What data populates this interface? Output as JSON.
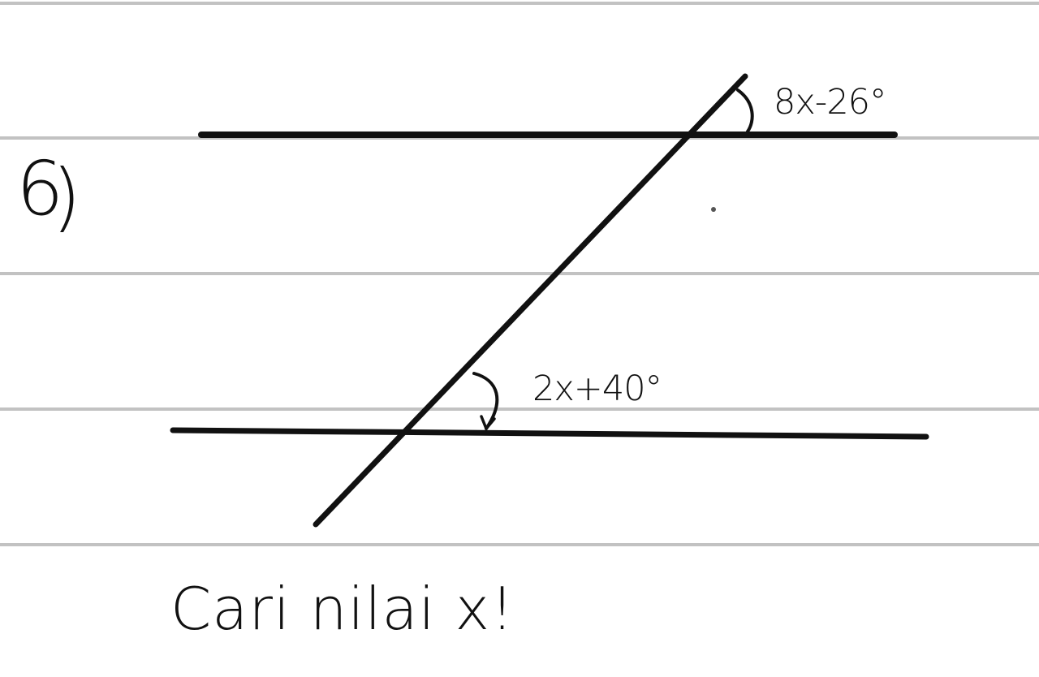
{
  "worksheet": {
    "problem_number": "6",
    "problem_bracket": ")",
    "instruction": "Cari nilai x!",
    "angles": {
      "upper": "8x-26°",
      "lower": "2x+40°"
    }
  },
  "colors": {
    "background": "#ffffff",
    "ruled_line": "#c2c2c2",
    "ink": "#111111"
  }
}
